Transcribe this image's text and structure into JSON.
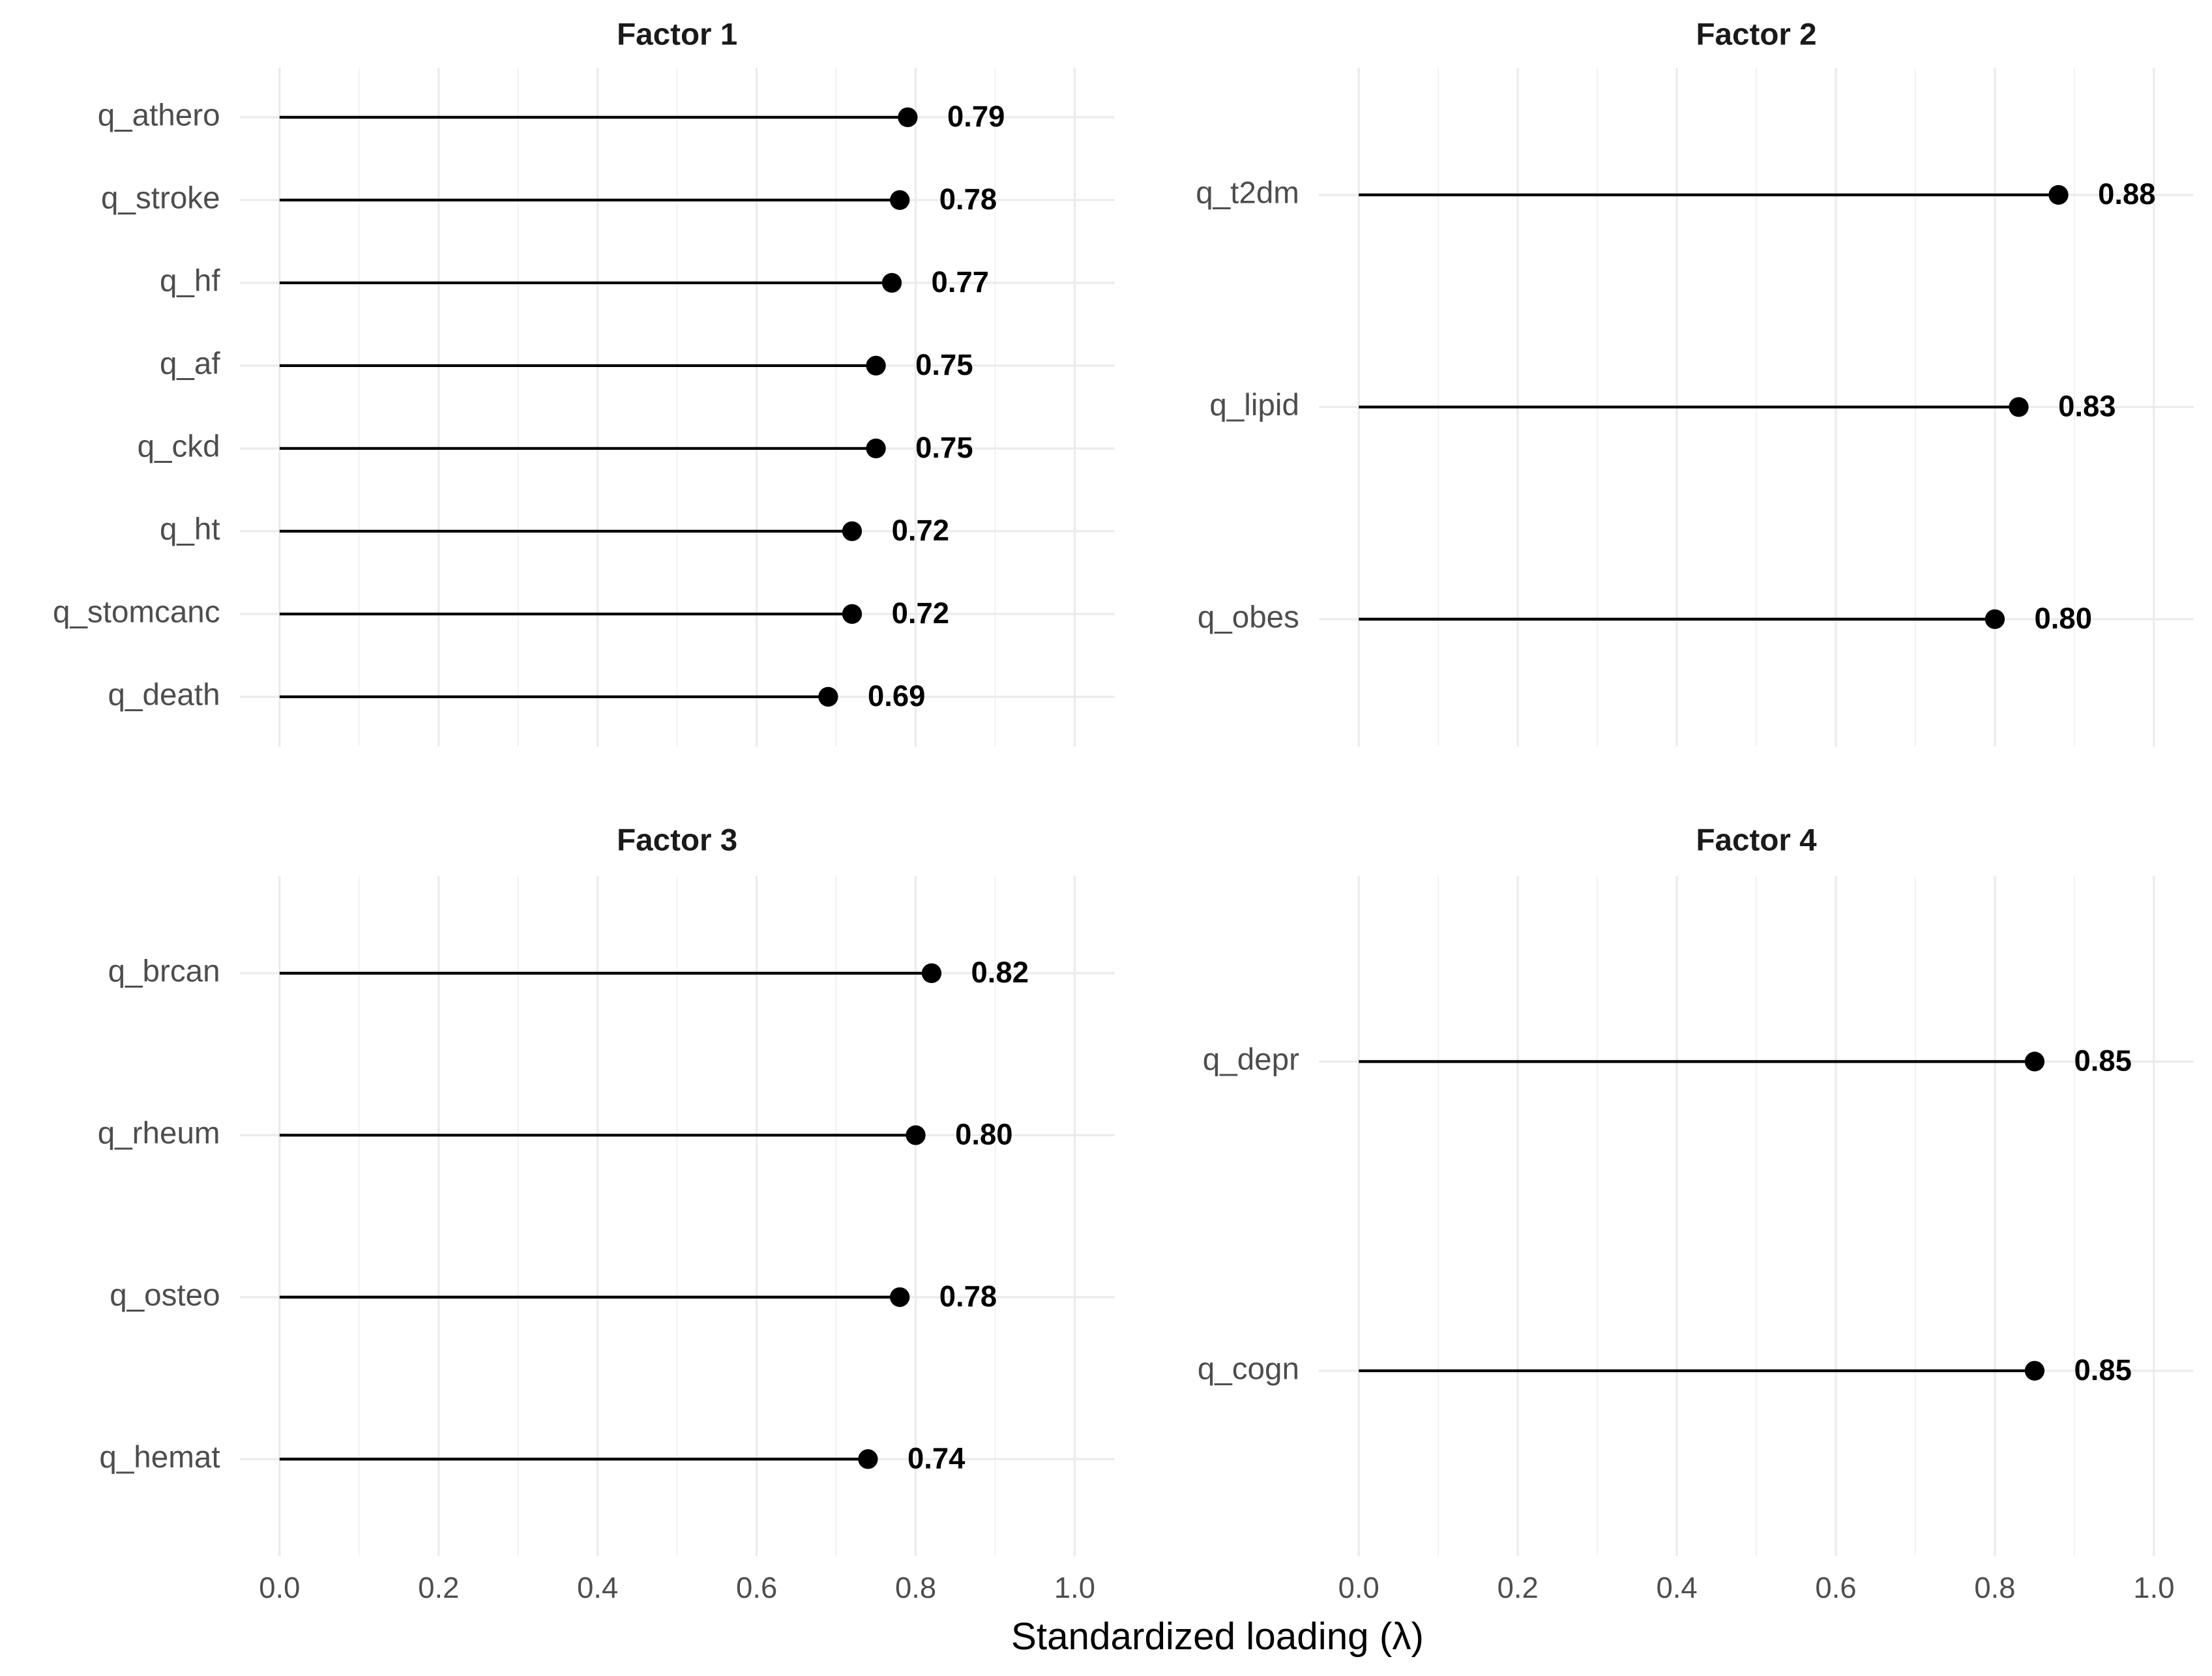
{
  "chart_data": [
    {
      "type": "lollipop",
      "title": "Factor 1",
      "categories": [
        "q_athero",
        "q_stroke",
        "q_hf",
        "q_af",
        "q_ckd",
        "q_ht",
        "q_stomcanc",
        "q_death"
      ],
      "values": [
        0.79,
        0.78,
        0.77,
        0.75,
        0.75,
        0.72,
        0.72,
        0.69
      ],
      "value_labels": [
        "0.79",
        "0.78",
        "0.77",
        "0.75",
        "0.75",
        "0.72",
        "0.72",
        "0.69"
      ],
      "color": "#000000",
      "xlim": [
        -0.05,
        1.05
      ],
      "xticks": [
        {
          "value": 0,
          "label": "0.0"
        },
        0.2,
        0.4,
        0.6,
        0.8,
        {
          "value": 1,
          "label": "1.0"
        }
      ],
      "xminorticks": [
        0.1,
        0.3,
        0.5,
        0.7,
        0.9
      ],
      "grid": true
    },
    {
      "type": "lollipop",
      "title": "Factor 2",
      "categories": [
        "q_t2dm",
        "q_lipid",
        "q_obes"
      ],
      "values": [
        0.88,
        0.83,
        0.8
      ],
      "value_labels": [
        "0.88",
        "0.83",
        "0.80"
      ],
      "color": "#000000",
      "xlim": [
        -0.05,
        1.05
      ],
      "xticks": [
        {
          "value": 0,
          "label": "0.0"
        },
        0.2,
        0.4,
        0.6,
        0.8,
        {
          "value": 1,
          "label": "1.0"
        }
      ],
      "xminorticks": [
        0.1,
        0.3,
        0.5,
        0.7,
        0.9
      ],
      "grid": true
    },
    {
      "type": "lollipop",
      "title": "Factor 3",
      "categories": [
        "q_brcan",
        "q_rheum",
        "q_osteo",
        "q_hemat"
      ],
      "values": [
        0.82,
        0.8,
        0.78,
        0.74
      ],
      "value_labels": [
        "0.82",
        "0.80",
        "0.78",
        "0.74"
      ],
      "color": "#000000",
      "xlim": [
        -0.05,
        1.05
      ],
      "xticks": [
        {
          "value": 0,
          "label": "0.0"
        },
        0.2,
        0.4,
        0.6,
        0.8,
        {
          "value": 1,
          "label": "1.0"
        }
      ],
      "xminorticks": [
        0.1,
        0.3,
        0.5,
        0.7,
        0.9
      ],
      "grid": true
    },
    {
      "type": "lollipop",
      "title": "Factor 4",
      "categories": [
        "q_depr",
        "q_cogn"
      ],
      "values": [
        0.85,
        0.85
      ],
      "value_labels": [
        "0.85",
        "0.85"
      ],
      "color": "#000000",
      "xlim": [
        -0.05,
        1.05
      ],
      "xticks": [
        {
          "value": 0,
          "label": "0.0"
        },
        0.2,
        0.4,
        0.6,
        0.8,
        {
          "value": 1,
          "label": "1.0"
        }
      ],
      "xminorticks": [
        0.1,
        0.3,
        0.5,
        0.7,
        0.9
      ],
      "grid": true
    }
  ],
  "xlabel": "Standardized loading (λ)"
}
